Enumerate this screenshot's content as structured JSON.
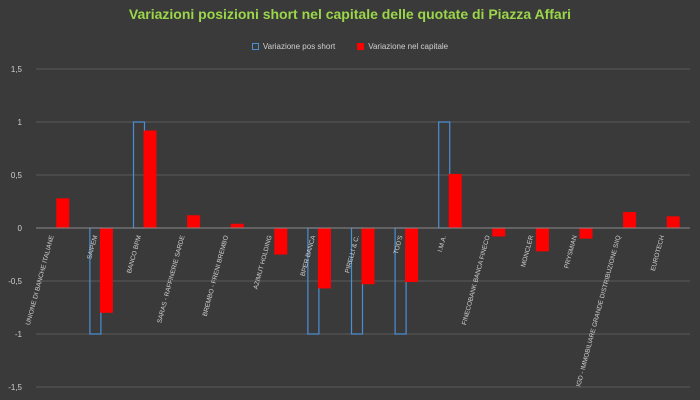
{
  "chart_data": {
    "type": "bar",
    "title": "Variazioni posizioni short nel capitale delle quotate di Piazza Affari",
    "categories": [
      "UNIONE DI BANCHE ITALIANE",
      "SAIPEM",
      "BANCO BPM",
      "SARAS - RAFFINERIE SARDE",
      "BREMBO - FRENI BREMBO",
      "AZIMUT HOLDING",
      "BPER BANCA",
      "PIRELLI & C.",
      "TOD'S",
      "I.M.A.",
      "FINECOBANK BANCA FINECO",
      "MONCLER",
      "PRYSMIAN",
      "IGD - IMMOBILIARE GRANDE DISTRIBUZIONE SIIQ",
      "EUROTECH"
    ],
    "series": [
      {
        "name": "Variazione pos short",
        "style": "outline",
        "color": "#4a8fd6",
        "values": [
          0,
          -1,
          1,
          0,
          0,
          0,
          -1,
          -1,
          -1,
          1,
          0,
          0,
          0,
          0,
          0
        ]
      },
      {
        "name": "Variazione nel capitale",
        "style": "fill",
        "color": "#ff0000",
        "values": [
          0.28,
          -0.8,
          0.92,
          0.12,
          0.04,
          -0.25,
          -0.57,
          -0.53,
          -0.51,
          0.51,
          -0.08,
          -0.22,
          -0.1,
          0.15,
          0.11
        ]
      }
    ],
    "yticks": [
      "-1,5",
      "-1",
      "-0,5",
      "0",
      "0,5",
      "1",
      "1,5"
    ],
    "ylim": [
      -1.5,
      1.5
    ],
    "grid": true,
    "legend_position": "top"
  }
}
